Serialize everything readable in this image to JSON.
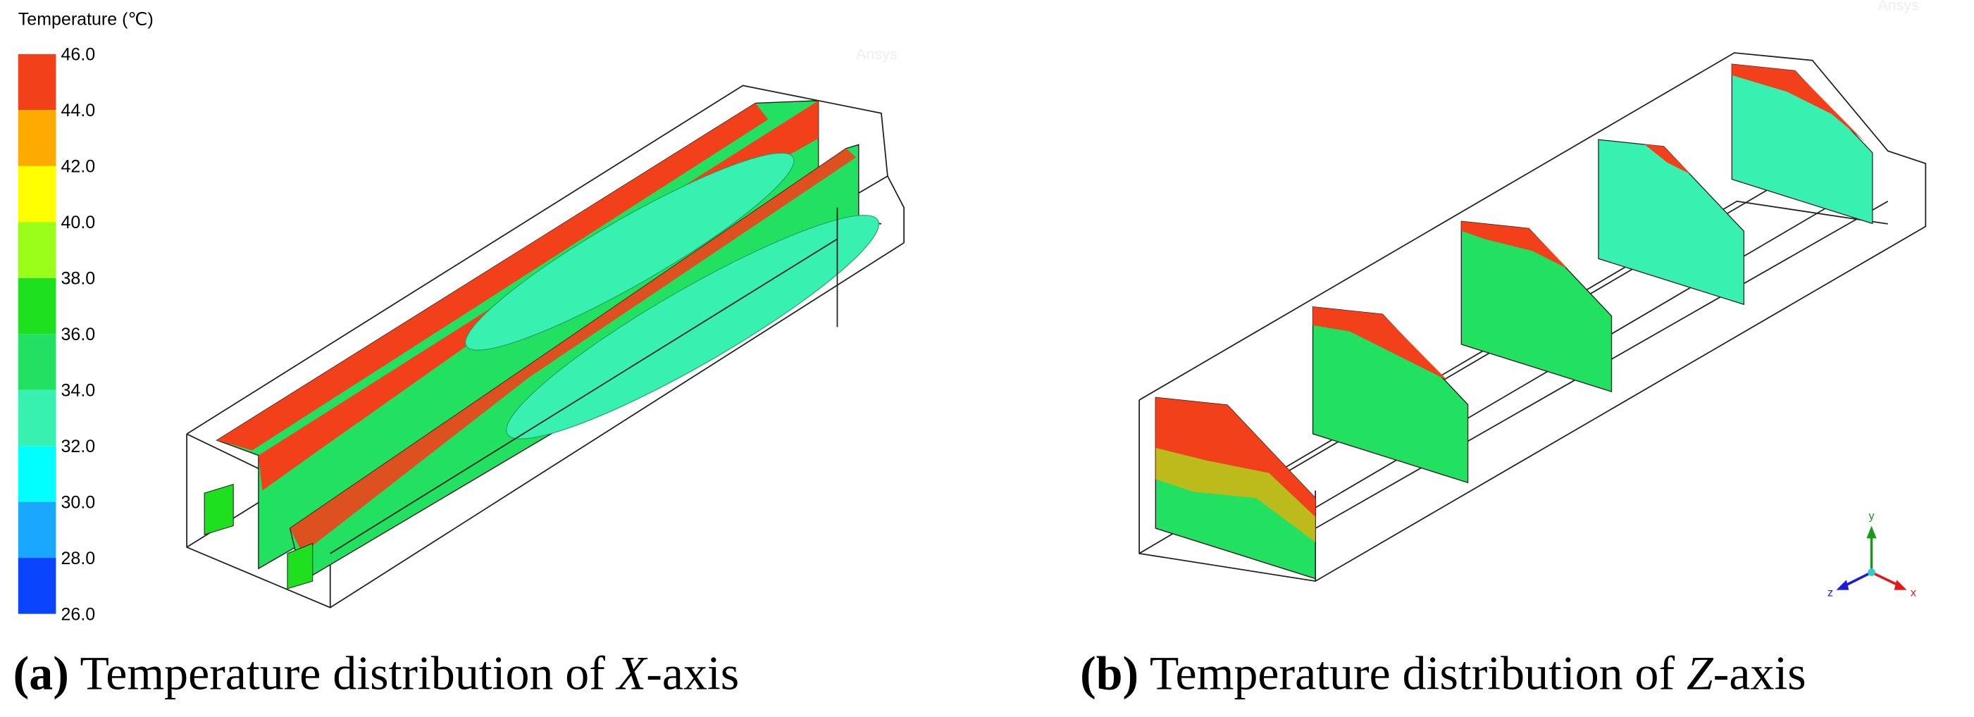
{
  "legend": {
    "title": "Temperature (℃)",
    "levels": [
      "46.0",
      "44.0",
      "42.0",
      "40.0",
      "38.0",
      "36.0",
      "34.0",
      "32.0",
      "30.0",
      "28.0",
      "26.0"
    ],
    "colors": [
      "#f2401a",
      "#ffaa00",
      "#ffff00",
      "#99ff1a",
      "#1ee01e",
      "#22e060",
      "#38f0b0",
      "#00ffff",
      "#1aa8ff",
      "#0a44ff"
    ]
  },
  "watermarks": [
    "Ansys",
    "Ansys"
  ],
  "axes_triad": {
    "x": "x",
    "y": "y",
    "z": "z"
  },
  "captions": [
    {
      "label": "(a)",
      "text": " Temperature distribution of ",
      "axis": "X",
      "suffix": "-axis"
    },
    {
      "label": "(b)",
      "text": " Temperature distribution of ",
      "axis": "Z",
      "suffix": "-axis"
    }
  ]
}
